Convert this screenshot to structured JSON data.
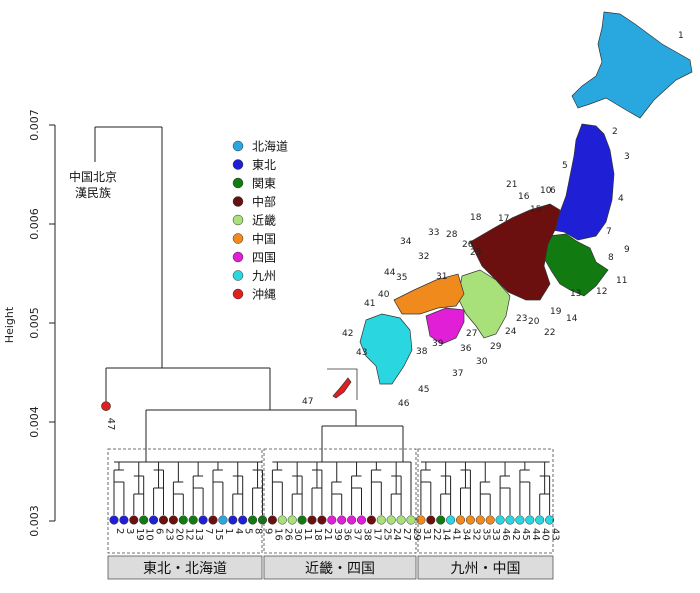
{
  "chart_data": {
    "type": "dendrogram",
    "ylabel": "Height",
    "ylim": [
      0.003,
      0.0072
    ],
    "yticks": [
      0.003,
      0.004,
      0.005,
      0.006,
      0.007
    ],
    "root_label": [
      "中国北京",
      "漢民族"
    ],
    "legend": [
      {
        "name": "北海道",
        "color": "#29a8e0"
      },
      {
        "name": "東北",
        "color": "#1f1fd6"
      },
      {
        "name": "関東",
        "color": "#117a11"
      },
      {
        "name": "中部",
        "color": "#6b0f0f"
      },
      {
        "name": "近畿",
        "color": "#a8e07a"
      },
      {
        "name": "中国",
        "color": "#f08a1c"
      },
      {
        "name": "四国",
        "color": "#e01fd6"
      },
      {
        "name": "九州",
        "color": "#2ad6e0"
      },
      {
        "name": "沖縄",
        "color": "#e01f1f"
      }
    ],
    "groups": [
      "東北・北海道",
      "近畿・四国",
      "九州・中国"
    ],
    "outlier": {
      "label": "47",
      "region": "沖縄",
      "height": 0.00416
    },
    "root_height": 0.00698,
    "main_cluster_height": 0.004,
    "leaves": [
      {
        "label": "2",
        "region": "東北"
      },
      {
        "label": "3",
        "region": "東北"
      },
      {
        "label": "19",
        "region": "中部"
      },
      {
        "label": "10",
        "region": "関東"
      },
      {
        "label": "6",
        "region": "東北"
      },
      {
        "label": "23",
        "region": "中部"
      },
      {
        "label": "20",
        "region": "中部"
      },
      {
        "label": "12",
        "region": "関東"
      },
      {
        "label": "13",
        "region": "関東"
      },
      {
        "label": "7",
        "region": "東北"
      },
      {
        "label": "15",
        "region": "中部"
      },
      {
        "label": "1",
        "region": "北海道"
      },
      {
        "label": "4",
        "region": "東北"
      },
      {
        "label": "5",
        "region": "東北"
      },
      {
        "label": "8",
        "region": "関東"
      },
      {
        "label": "9",
        "region": "関東"
      },
      {
        "label": "16",
        "region": "中部"
      },
      {
        "label": "26",
        "region": "近畿"
      },
      {
        "label": "30",
        "region": "近畿"
      },
      {
        "label": "11",
        "region": "関東"
      },
      {
        "label": "18",
        "region": "中部"
      },
      {
        "label": "21",
        "region": "中部"
      },
      {
        "label": "39",
        "region": "四国"
      },
      {
        "label": "36",
        "region": "四国"
      },
      {
        "label": "37",
        "region": "四国"
      },
      {
        "label": "38",
        "region": "四国"
      },
      {
        "label": "17",
        "region": "中部"
      },
      {
        "label": "25",
        "region": "近畿"
      },
      {
        "label": "24",
        "region": "近畿"
      },
      {
        "label": "27",
        "region": "近畿"
      },
      {
        "label": "29",
        "region": "近畿"
      },
      {
        "label": "31",
        "region": "中国"
      },
      {
        "label": "22",
        "region": "中部"
      },
      {
        "label": "14",
        "region": "関東"
      },
      {
        "label": "41",
        "region": "九州"
      },
      {
        "label": "34",
        "region": "中国"
      },
      {
        "label": "32",
        "region": "中国"
      },
      {
        "label": "35",
        "region": "中国"
      },
      {
        "label": "33",
        "region": "中国"
      },
      {
        "label": "46",
        "region": "九州"
      },
      {
        "label": "42",
        "region": "九州"
      },
      {
        "label": "45",
        "region": "九州"
      },
      {
        "label": "44",
        "region": "九州"
      },
      {
        "label": "40",
        "region": "九州"
      },
      {
        "label": "43",
        "region": "九州"
      }
    ],
    "map_labels": [
      "1",
      "2",
      "3",
      "4",
      "5",
      "6",
      "7",
      "8",
      "9",
      "10",
      "11",
      "12",
      "13",
      "14",
      "15",
      "16",
      "17",
      "18",
      "19",
      "20",
      "21",
      "22",
      "23",
      "24",
      "25",
      "26",
      "27",
      "28",
      "29",
      "30",
      "31",
      "32",
      "33",
      "34",
      "35",
      "36",
      "37",
      "38",
      "39",
      "40",
      "41",
      "42",
      "43",
      "44",
      "45",
      "46",
      "47"
    ]
  }
}
